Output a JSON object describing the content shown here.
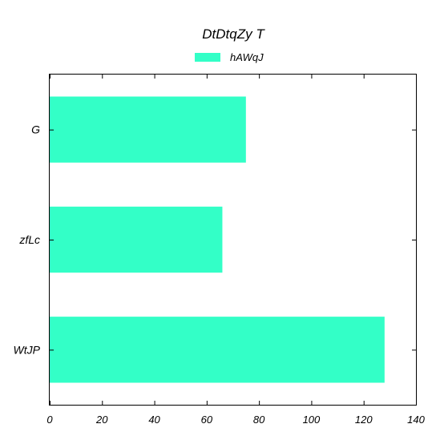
{
  "chart_data": {
    "type": "bar",
    "orientation": "horizontal",
    "title": "DtDtqZy T",
    "categories": [
      "G",
      "zfLc",
      "WtJP"
    ],
    "series": [
      {
        "name": "hAWqJ",
        "values": [
          75,
          66,
          128
        ],
        "color": "#33ffc7"
      }
    ],
    "xlim": [
      0,
      140
    ],
    "xticks": [
      0,
      20,
      40,
      60,
      80,
      100,
      120,
      140
    ],
    "xlabel": "",
    "ylabel": "",
    "grid": false,
    "legend_position": "top-center"
  }
}
